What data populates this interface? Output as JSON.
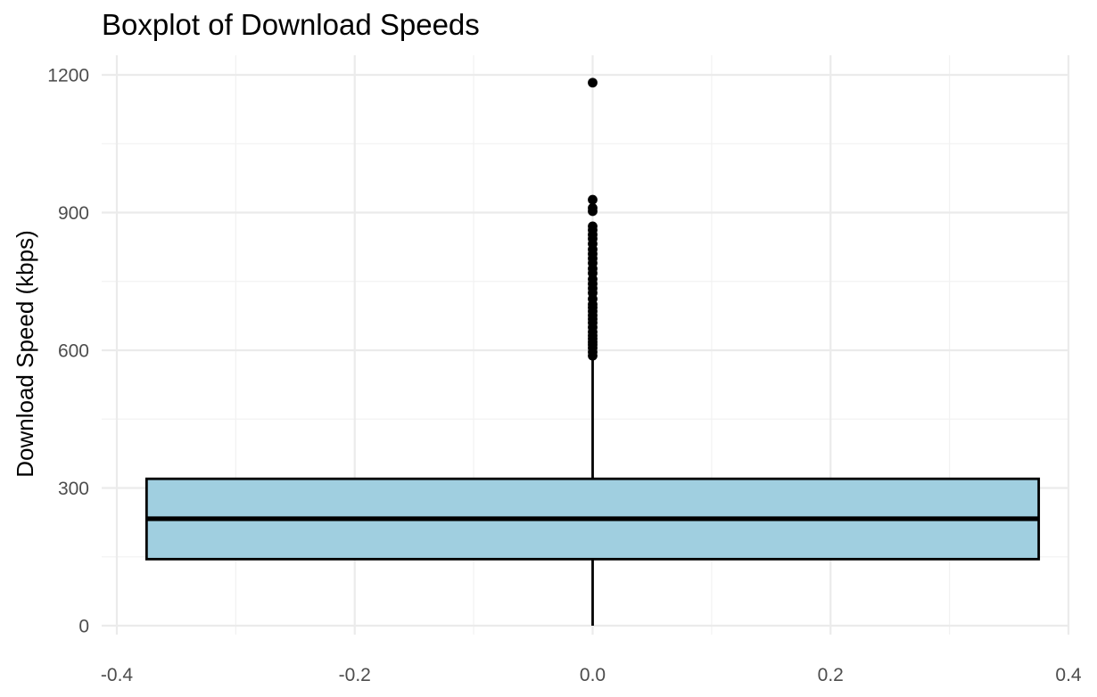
{
  "chart_data": {
    "type": "boxplot",
    "title": "Boxplot of Download Speeds",
    "xlabel": "",
    "ylabel": "Download Speed (kbps)",
    "xlim": [
      -0.4,
      0.4
    ],
    "ylim": [
      0,
      1200
    ],
    "x_ticks": [
      "-0.4",
      "-0.2",
      "0.0",
      "0.2",
      "0.4"
    ],
    "y_ticks": [
      "0",
      "300",
      "600",
      "900",
      "1200"
    ],
    "x_tick_values": [
      -0.4,
      -0.2,
      0.0,
      0.2,
      0.4
    ],
    "y_tick_values": [
      0,
      300,
      600,
      900,
      1200
    ],
    "x_minor_values": [
      -0.3,
      -0.1,
      0.1,
      0.3
    ],
    "y_minor_values": [
      150,
      450,
      750,
      1050
    ],
    "grid": true,
    "legend": "none",
    "colors": {
      "box_fill": "#a0cfe0",
      "box_outline": "#000000",
      "outlier": "#000000"
    },
    "box": {
      "x_center": 0.0,
      "x_left": -0.375,
      "x_right": 0.375,
      "lower_whisker": 0,
      "q1": 145,
      "median": 233,
      "q3": 320,
      "upper_whisker": 580
    },
    "outliers": [
      588,
      596,
      605,
      612,
      618,
      625,
      632,
      640,
      650,
      660,
      668,
      676,
      685,
      693,
      700,
      712,
      725,
      735,
      745,
      755,
      768,
      778,
      790,
      800,
      810,
      820,
      832,
      843,
      852,
      862,
      870,
      903,
      910,
      928,
      1183
    ]
  }
}
